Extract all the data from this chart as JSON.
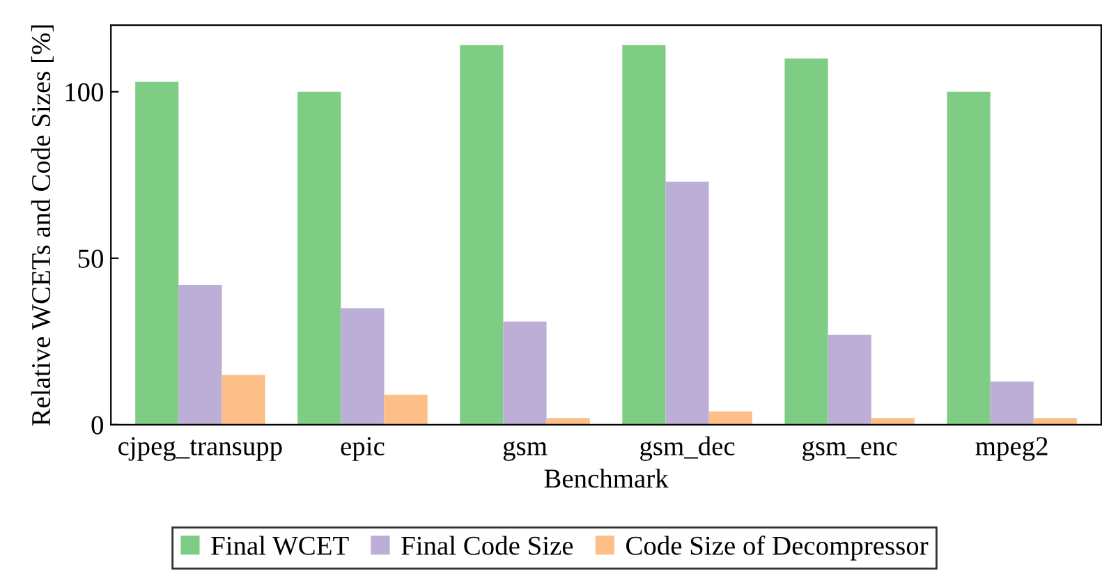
{
  "chart_data": {
    "type": "bar",
    "xlabel": "Benchmark",
    "ylabel": "Relative WCETs and Code Sizes [%]",
    "categories": [
      "cjpeg_transupp",
      "epic",
      "gsm",
      "gsm_dec",
      "gsm_enc",
      "mpeg2"
    ],
    "series": [
      {
        "name": "Final WCET",
        "color": "#7fcc85",
        "values": [
          103,
          100,
          114,
          114,
          110,
          100
        ]
      },
      {
        "name": "Final Code Size",
        "color": "#bcaed6",
        "values": [
          42,
          35,
          31,
          73,
          27,
          13
        ]
      },
      {
        "name": "Code Size of Decompressor",
        "color": "#fdbf87",
        "values": [
          15,
          9,
          2,
          4,
          2,
          2
        ]
      }
    ],
    "ylim": [
      0,
      120
    ],
    "yticks": [
      0,
      50,
      100
    ],
    "grid": false,
    "legend": "bottom"
  }
}
